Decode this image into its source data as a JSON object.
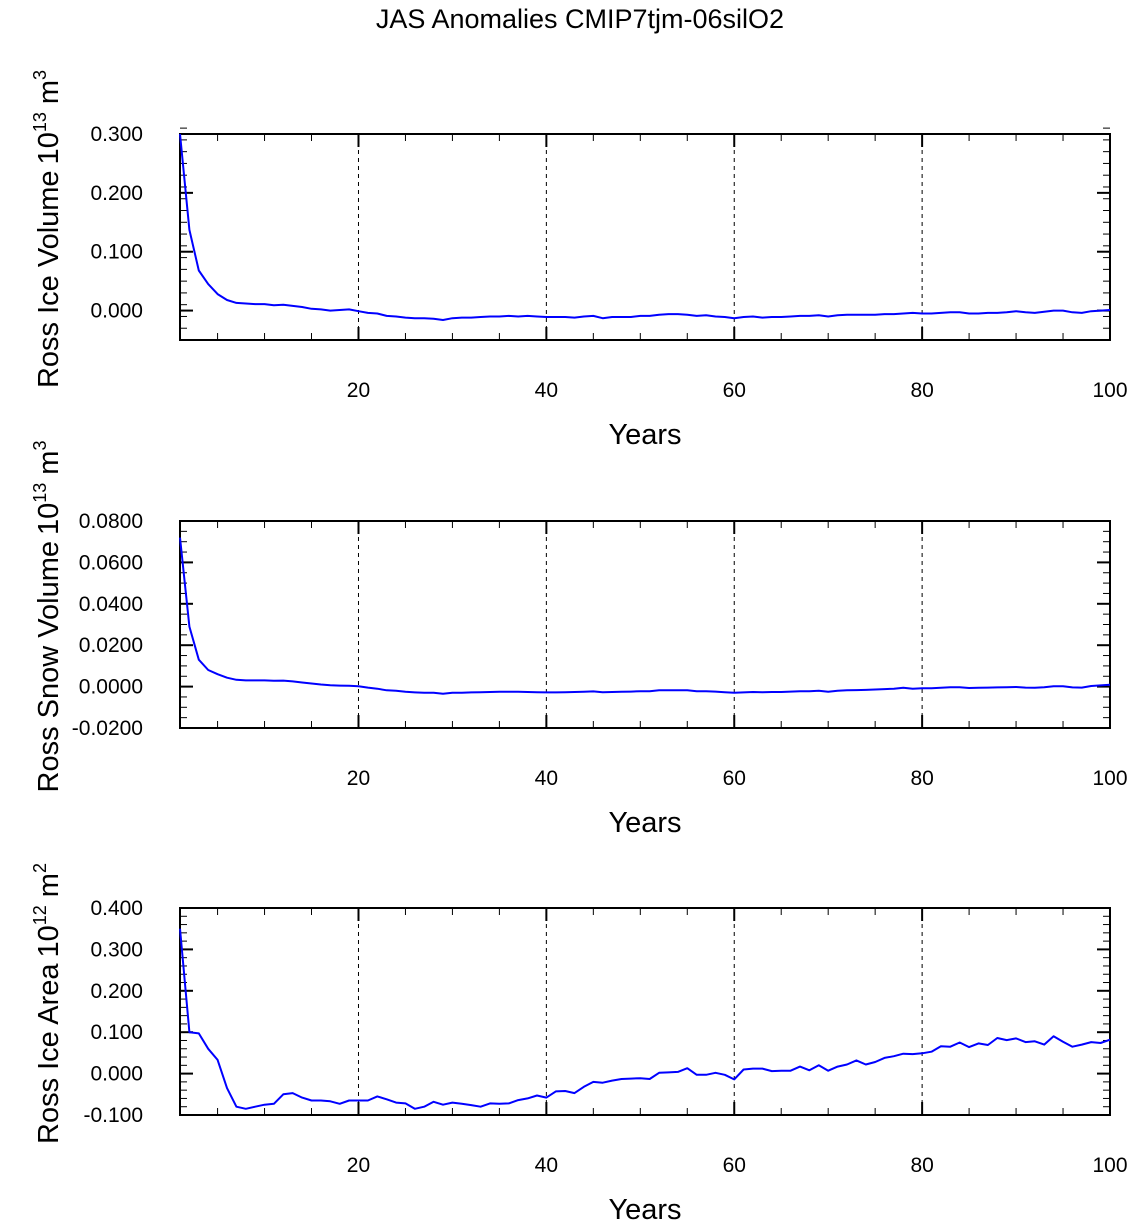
{
  "title": "JAS Anomalies CMIP7tjm-06silO2",
  "line_color": "#0000ff",
  "chart_data": [
    {
      "type": "line",
      "ylabel": "Ross Ice Volume",
      "yunit_base": "10",
      "yunit_exp": "13",
      "yunit_unit": "m",
      "yunit_unit_exp": "3",
      "xlabel": "Years",
      "xlim": [
        1,
        100
      ],
      "ylim": [
        -0.05,
        0.3
      ],
      "xticks": [
        20,
        40,
        60,
        80,
        100
      ],
      "xtick_labels": [
        "20",
        "40",
        "60",
        "80",
        "100"
      ],
      "yticks": [
        0.0,
        0.1,
        0.2,
        0.3
      ],
      "ytick_labels": [
        "0.000",
        "0.100",
        "0.200",
        "0.300"
      ],
      "yminor_step": 0.02,
      "grid": "dashed vertical at major x ticks",
      "values": [
        0.3,
        0.137,
        0.068,
        0.045,
        0.028,
        0.018,
        0.013,
        0.012,
        0.011,
        0.011,
        0.009,
        0.01,
        0.008,
        0.006,
        0.003,
        0.002,
        0.0,
        0.001,
        0.002,
        -0.001,
        -0.004,
        -0.005,
        -0.009,
        -0.01,
        -0.012,
        -0.013,
        -0.013,
        -0.014,
        -0.016,
        -0.013,
        -0.012,
        -0.012,
        -0.011,
        -0.01,
        -0.01,
        -0.009,
        -0.01,
        -0.009,
        -0.01,
        -0.011,
        -0.011,
        -0.011,
        -0.012,
        -0.01,
        -0.009,
        -0.013,
        -0.011,
        -0.011,
        -0.011,
        -0.009,
        -0.009,
        -0.007,
        -0.006,
        -0.006,
        -0.007,
        -0.009,
        -0.008,
        -0.01,
        -0.011,
        -0.013,
        -0.011,
        -0.01,
        -0.012,
        -0.011,
        -0.011,
        -0.01,
        -0.009,
        -0.009,
        -0.008,
        -0.01,
        -0.008,
        -0.007,
        -0.007,
        -0.007,
        -0.007,
        -0.006,
        -0.006,
        -0.005,
        -0.004,
        -0.005,
        -0.005,
        -0.004,
        -0.003,
        -0.003,
        -0.005,
        -0.005,
        -0.004,
        -0.004,
        -0.003,
        -0.001,
        -0.003,
        -0.004,
        -0.002,
        0.0,
        0.0,
        -0.003,
        -0.004,
        -0.001,
        0.0,
        0.001
      ]
    },
    {
      "type": "line",
      "ylabel": "Ross Snow Volume",
      "yunit_base": "10",
      "yunit_exp": "13",
      "yunit_unit": "m",
      "yunit_unit_exp": "3",
      "xlabel": "Years",
      "xlim": [
        1,
        100
      ],
      "ylim": [
        -0.02,
        0.08
      ],
      "xticks": [
        20,
        40,
        60,
        80,
        100
      ],
      "xtick_labels": [
        "20",
        "40",
        "60",
        "80",
        "100"
      ],
      "yticks": [
        -0.02,
        0.0,
        0.02,
        0.04,
        0.06,
        0.08
      ],
      "ytick_labels": [
        "-0.0200",
        "0.0000",
        "0.0200",
        "0.0400",
        "0.0600",
        "0.0800"
      ],
      "yminor_step": 0.005,
      "grid": "dashed vertical at major x ticks",
      "values": [
        0.072,
        0.029,
        0.013,
        0.008,
        0.006,
        0.0043,
        0.0033,
        0.003,
        0.003,
        0.003,
        0.0028,
        0.0029,
        0.0025,
        0.002,
        0.0015,
        0.001,
        0.0007,
        0.0005,
        0.0004,
        0.0002,
        -0.0005,
        -0.001,
        -0.0018,
        -0.002,
        -0.0025,
        -0.0028,
        -0.003,
        -0.003,
        -0.0035,
        -0.003,
        -0.003,
        -0.0028,
        -0.0027,
        -0.0026,
        -0.0025,
        -0.0025,
        -0.0025,
        -0.0026,
        -0.0027,
        -0.0028,
        -0.0028,
        -0.0027,
        -0.0026,
        -0.0025,
        -0.0023,
        -0.0027,
        -0.0026,
        -0.0025,
        -0.0024,
        -0.0022,
        -0.0022,
        -0.0018,
        -0.0018,
        -0.0018,
        -0.0018,
        -0.0022,
        -0.0022,
        -0.0024,
        -0.0027,
        -0.003,
        -0.0028,
        -0.0026,
        -0.0027,
        -0.0026,
        -0.0026,
        -0.0024,
        -0.0022,
        -0.0022,
        -0.002,
        -0.0025,
        -0.002,
        -0.0018,
        -0.0017,
        -0.0016,
        -0.0014,
        -0.0012,
        -0.001,
        -0.0006,
        -0.001,
        -0.0008,
        -0.0008,
        -0.0006,
        -0.0003,
        -0.0003,
        -0.0007,
        -0.0006,
        -0.0005,
        -0.0004,
        -0.0003,
        -0.0002,
        -0.0005,
        -0.0006,
        -0.0003,
        0.0002,
        0.0002,
        -0.0004,
        -0.0005,
        0.0003,
        0.0006,
        0.0009
      ]
    },
    {
      "type": "line",
      "ylabel": "Ross Ice Area",
      "yunit_base": "10",
      "yunit_exp": "12",
      "yunit_unit": "m",
      "yunit_unit_exp": "2",
      "xlabel": "Years",
      "xlim": [
        1,
        100
      ],
      "ylim": [
        -0.1,
        0.4
      ],
      "xticks": [
        20,
        40,
        60,
        80,
        100
      ],
      "xtick_labels": [
        "20",
        "40",
        "60",
        "80",
        "100"
      ],
      "yticks": [
        -0.1,
        0.0,
        0.1,
        0.2,
        0.3,
        0.4
      ],
      "ytick_labels": [
        "-0.100",
        "0.000",
        "0.100",
        "0.200",
        "0.300",
        "0.400"
      ],
      "yminor_step": 0.02,
      "grid": "dashed vertical at major x ticks",
      "values": [
        0.35,
        0.1,
        0.097,
        0.06,
        0.033,
        -0.035,
        -0.08,
        -0.085,
        -0.08,
        -0.075,
        -0.073,
        -0.05,
        -0.047,
        -0.058,
        -0.065,
        -0.065,
        -0.067,
        -0.073,
        -0.065,
        -0.065,
        -0.065,
        -0.055,
        -0.062,
        -0.07,
        -0.072,
        -0.085,
        -0.08,
        -0.068,
        -0.075,
        -0.07,
        -0.073,
        -0.076,
        -0.08,
        -0.072,
        -0.073,
        -0.072,
        -0.064,
        -0.06,
        -0.053,
        -0.058,
        -0.043,
        -0.042,
        -0.047,
        -0.032,
        -0.02,
        -0.022,
        -0.017,
        -0.013,
        -0.012,
        -0.011,
        -0.013,
        0.002,
        0.003,
        0.004,
        0.013,
        -0.003,
        -0.003,
        0.002,
        -0.003,
        -0.014,
        0.01,
        0.012,
        0.012,
        0.006,
        0.007,
        0.007,
        0.017,
        0.008,
        0.02,
        0.007,
        0.017,
        0.022,
        0.032,
        0.022,
        0.028,
        0.038,
        0.042,
        0.048,
        0.047,
        0.049,
        0.053,
        0.066,
        0.065,
        0.075,
        0.064,
        0.073,
        0.069,
        0.086,
        0.081,
        0.085,
        0.076,
        0.078,
        0.07,
        0.09,
        0.077,
        0.065,
        0.07,
        0.076,
        0.074,
        0.082
      ]
    }
  ]
}
